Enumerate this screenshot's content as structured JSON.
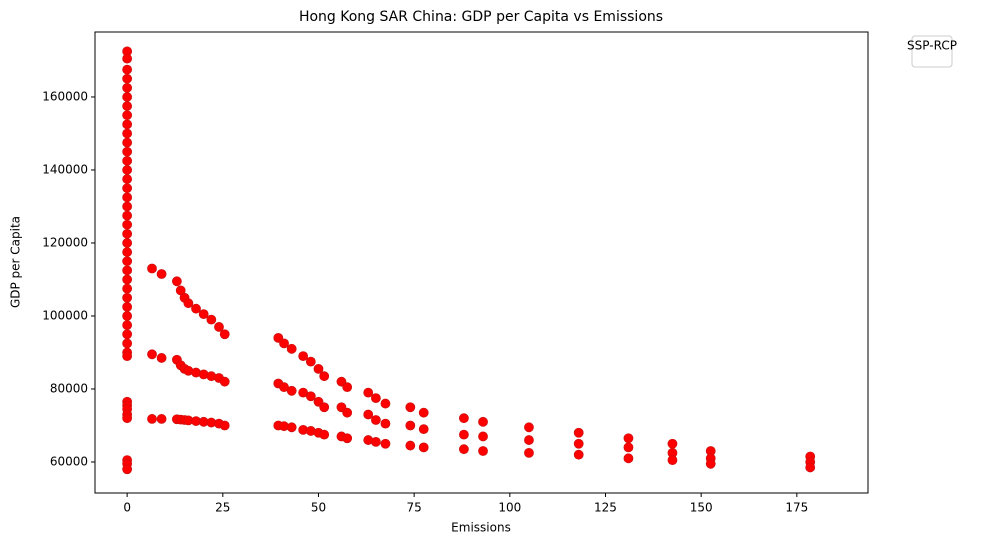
{
  "chart_data": {
    "type": "scatter",
    "title": "Hong Kong SAR China: GDP per Capita vs Emissions",
    "x_label": "Emissions",
    "y_label": "GDP per Capita",
    "legend_title": "SSP-RCP",
    "color": "#ff0000",
    "xlim": [
      -8.4,
      193.6
    ],
    "ylim": [
      51500,
      177800
    ],
    "xticks": [
      0,
      25,
      50,
      75,
      100,
      125,
      150,
      175
    ],
    "yticks": [
      60000,
      80000,
      100000,
      120000,
      140000,
      160000
    ],
    "x": [
      0,
      0,
      0,
      0,
      0,
      0,
      0,
      0,
      0,
      0,
      0,
      0,
      0,
      0,
      0,
      0,
      0,
      0,
      0,
      0,
      0,
      0,
      0,
      0,
      0,
      0,
      0,
      0,
      0,
      0,
      0,
      0,
      0,
      0,
      0,
      0,
      0,
      0,
      0,
      0,
      0,
      0,
      0,
      6.5,
      6.5,
      6.5,
      9,
      9,
      9,
      13,
      13,
      13,
      14,
      14,
      14,
      15,
      15,
      15,
      16,
      16,
      16,
      18,
      18,
      18,
      20,
      20,
      20,
      22,
      22,
      22,
      24,
      24,
      24,
      25.5,
      25.5,
      25.5,
      39.5,
      39.5,
      39.5,
      41,
      41,
      41,
      43,
      43,
      43,
      46,
      46,
      46,
      48,
      48,
      48,
      50,
      50,
      50,
      51.5,
      51.5,
      51.5,
      56,
      56,
      56,
      57.5,
      57.5,
      57.5,
      63,
      63,
      63,
      65,
      65,
      65,
      67.5,
      67.5,
      67.5,
      74,
      74,
      74,
      77.5,
      77.5,
      77.5,
      88,
      88,
      88,
      93,
      93,
      93,
      105,
      105,
      105,
      118,
      118,
      118,
      131,
      131,
      131,
      142.5,
      142.5,
      142.5,
      152.5,
      152.5,
      152.5,
      178.5,
      178.5,
      178.5
    ],
    "values": [
      172500,
      170500,
      167500,
      165000,
      162500,
      160000,
      157500,
      155000,
      152500,
      150000,
      147500,
      145000,
      142500,
      140000,
      137500,
      135000,
      132500,
      130000,
      127500,
      125000,
      122500,
      120000,
      117500,
      115000,
      112500,
      110000,
      107500,
      105000,
      102500,
      100000,
      97500,
      95000,
      92500,
      90000,
      89000,
      76500,
      75500,
      74500,
      73000,
      72000,
      60500,
      59500,
      58000,
      113000,
      89500,
      71800,
      111500,
      88500,
      71800,
      109500,
      88000,
      71700,
      107000,
      86500,
      71600,
      105000,
      85500,
      71500,
      103500,
      85000,
      71400,
      102000,
      84500,
      71200,
      100500,
      84000,
      71000,
      99000,
      83500,
      70800,
      97000,
      83000,
      70500,
      95000,
      82000,
      70000,
      94000,
      81500,
      70000,
      92500,
      80500,
      69800,
      91000,
      79500,
      69500,
      89000,
      79000,
      68800,
      87500,
      78000,
      68500,
      85500,
      76500,
      68000,
      83500,
      75000,
      67500,
      82000,
      75000,
      67000,
      80500,
      73500,
      66500,
      79000,
      73000,
      66000,
      77500,
      71500,
      65500,
      76000,
      70500,
      65000,
      75000,
      70000,
      64500,
      73500,
      69000,
      64000,
      72000,
      67500,
      63500,
      71000,
      67000,
      63000,
      69500,
      66000,
      62500,
      68000,
      65000,
      62000,
      66500,
      64000,
      61000,
      65000,
      62500,
      60500,
      63000,
      61000,
      59500,
      61500,
      60000,
      58500
    ]
  }
}
